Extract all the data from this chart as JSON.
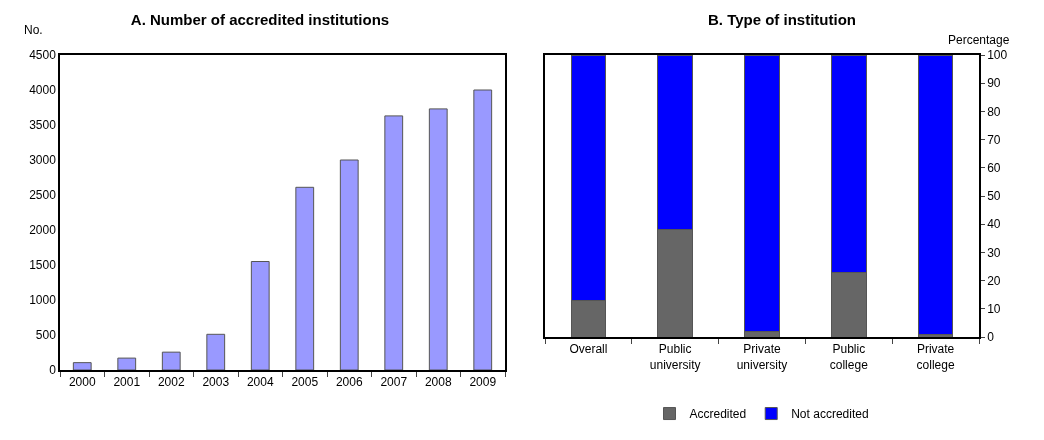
{
  "chart_data": [
    {
      "type": "bar",
      "title": "A. Number of accredited institutions",
      "ylabel": "No.",
      "categories": [
        "2000",
        "2001",
        "2002",
        "2003",
        "2004",
        "2005",
        "2006",
        "2007",
        "2008",
        "2009"
      ],
      "series": [
        {
          "color": "#9999ff",
          "values": [
            105,
            170,
            255,
            510,
            1550,
            2610,
            3000,
            3630,
            3730,
            4000
          ]
        }
      ],
      "ylim": [
        0,
        4500
      ],
      "yticks": [
        0,
        500,
        1000,
        1500,
        2000,
        2500,
        3000,
        3500,
        4000,
        4500
      ],
      "grid": false,
      "legend": false
    },
    {
      "type": "bar",
      "title": "B. Type of institution",
      "y2label": "Percentage",
      "stacked": true,
      "categories": [
        "Overall",
        "Public university",
        "Private university",
        "Public college",
        "Private college"
      ],
      "series": [
        {
          "name": "Accredited",
          "color": "#666666",
          "axis": "y2",
          "values": [
            13,
            38,
            2,
            23,
            1
          ]
        },
        {
          "name": "Not accredited",
          "color": "#0000ff",
          "axis": "y2",
          "values": [
            87,
            62,
            98,
            77,
            99
          ]
        }
      ],
      "y2lim": [
        0,
        100
      ],
      "y2ticks": [
        0,
        10,
        20,
        30,
        40,
        50,
        60,
        70,
        80,
        90,
        100
      ],
      "grid": false,
      "legend": "bottom"
    }
  ]
}
